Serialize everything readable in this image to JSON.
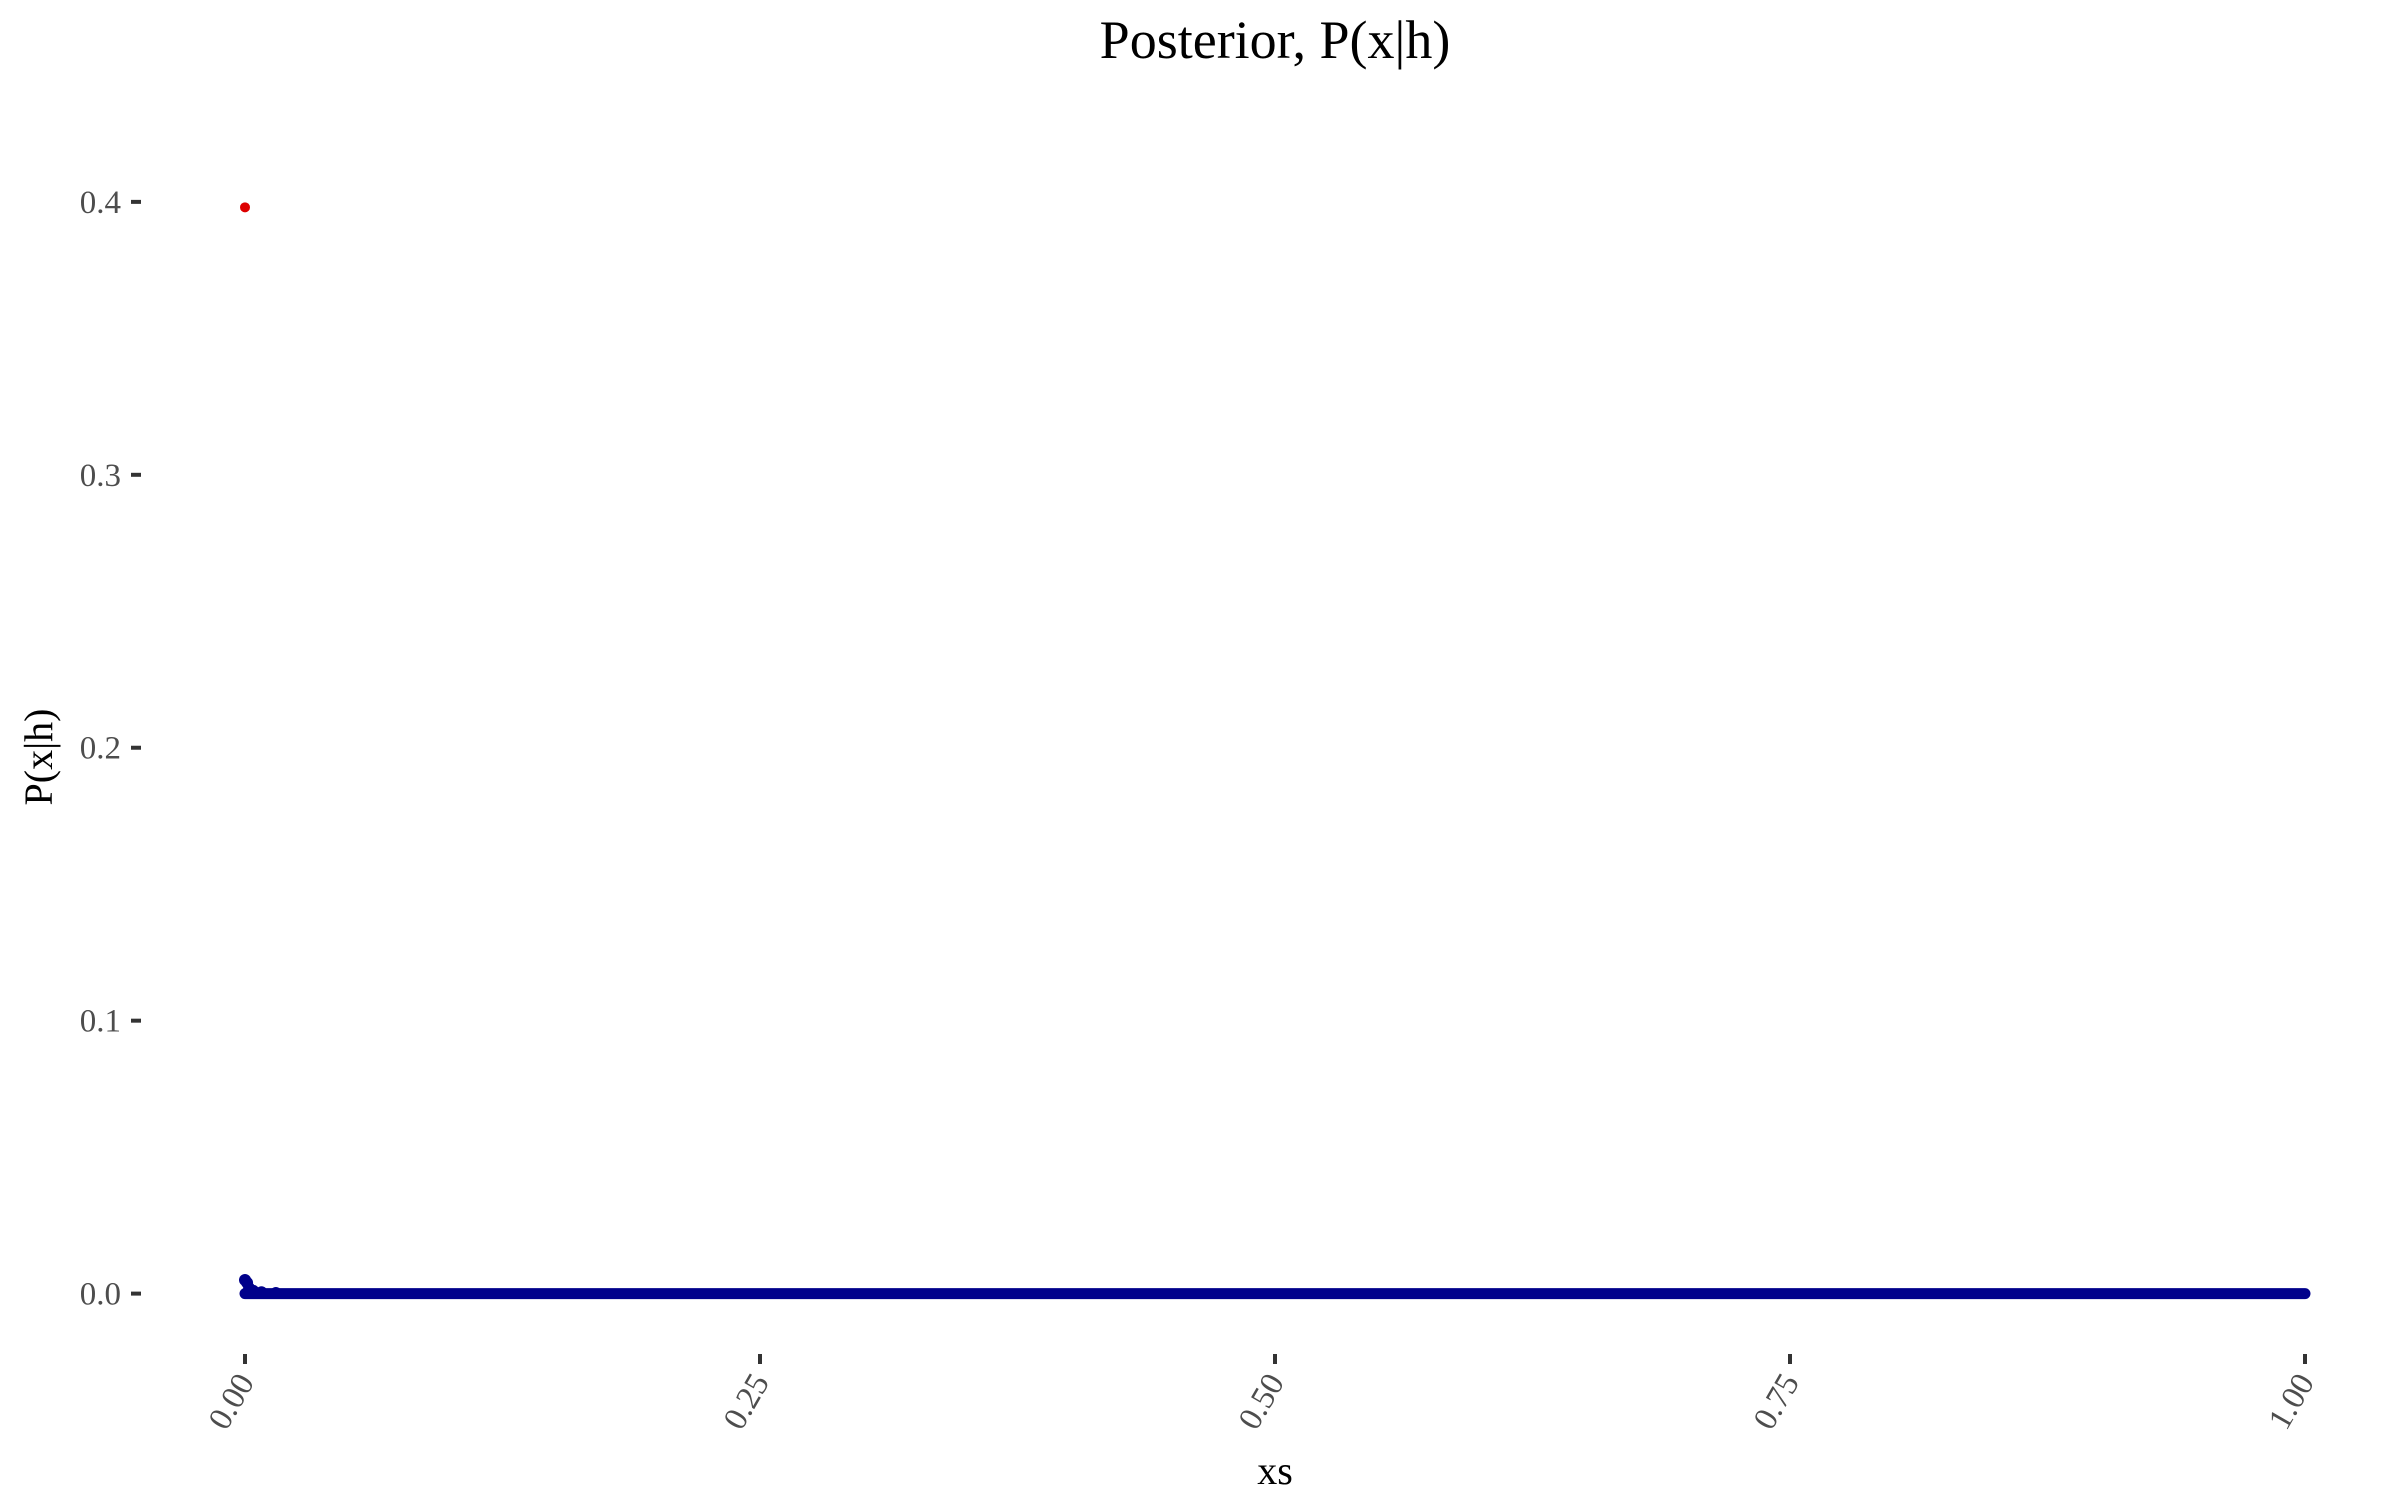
{
  "chart_data": {
    "type": "scatter",
    "title": "Posterior, P(x|h)",
    "xlabel": "xs",
    "ylabel": "P(x|h)",
    "xlim": [
      0,
      1
    ],
    "ylim": [
      -0.017,
      0.43
    ],
    "x_ticks": [
      0,
      0.25,
      0.5,
      0.75,
      1
    ],
    "x_tick_labels": [
      "0.00",
      "0.25",
      "0.50",
      "0.75",
      "1.00"
    ],
    "y_ticks": [
      0,
      0.1,
      0.2,
      0.3,
      0.4
    ],
    "y_tick_labels": [
      "0.0",
      "0.1",
      "0.2",
      "0.3",
      "0.4"
    ],
    "grid": false,
    "legend": "none",
    "series": [
      {
        "color": "#00008b",
        "x_start": 0,
        "x_end": 1,
        "baseline_y": 0,
        "spike_points": [
          {
            "x": 0,
            "y": 0.005
          },
          {
            "x": 0.001,
            "y": 0.004
          },
          {
            "x": 0.002,
            "y": 0.002
          },
          {
            "x": 0.004,
            "y": 0.001
          },
          {
            "x": 0.008,
            "y": 0.0005
          },
          {
            "x": 0.015,
            "y": 0.0002
          }
        ]
      },
      {
        "color": "#dd0000",
        "points": [
          {
            "x": 0,
            "y": 0.398
          }
        ]
      }
    ]
  }
}
